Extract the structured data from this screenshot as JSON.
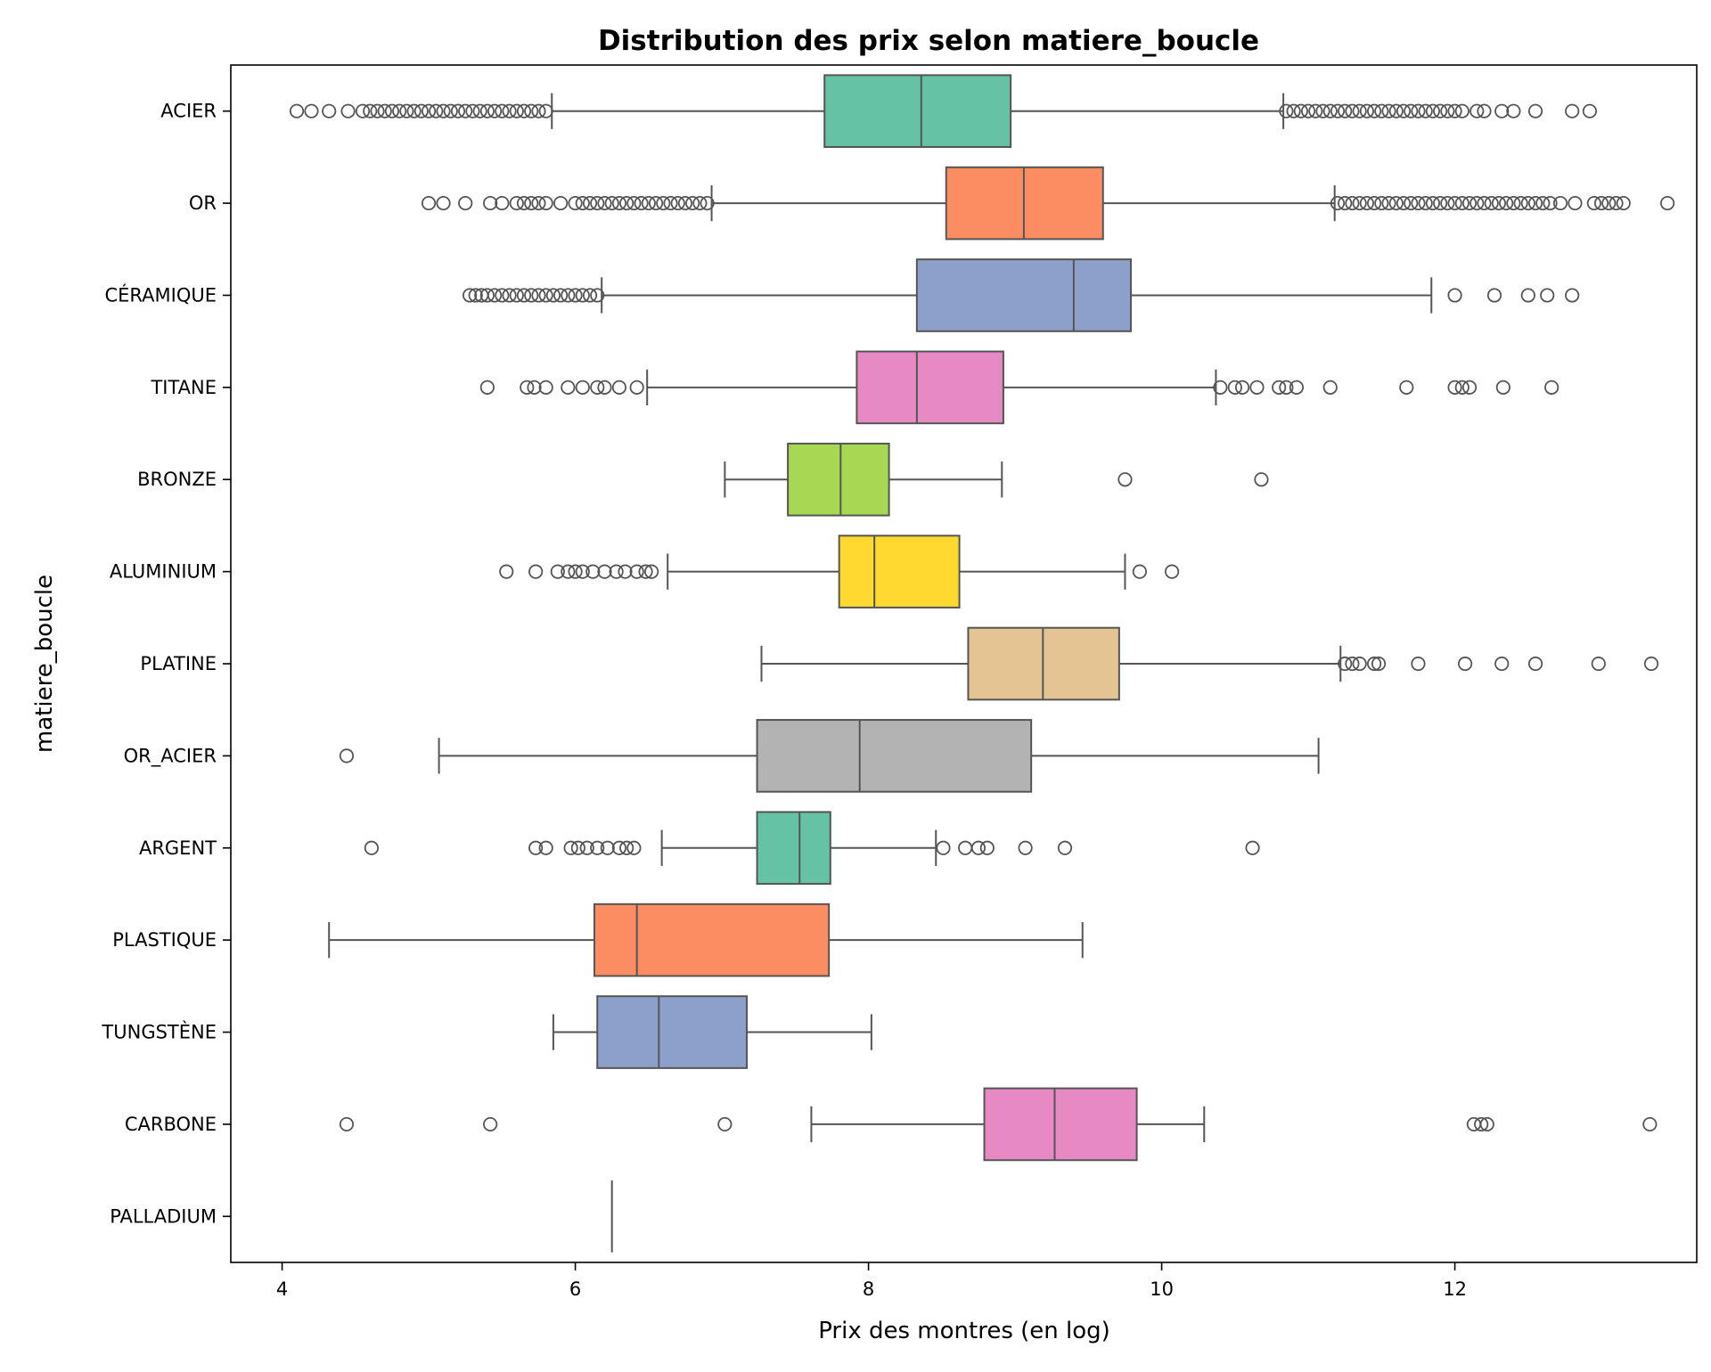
{
  "chart_data": {
    "type": "box",
    "title": "Distribution des prix selon matiere_boucle",
    "xlabel": "Prix des montres (en log)",
    "ylabel": "matiere_boucle",
    "xlim": [
      3.65,
      13.65
    ],
    "xticks": [
      4,
      6,
      8,
      10,
      12
    ],
    "orientation": "horizontal",
    "grid": false,
    "categories": [
      "ACIER",
      "OR",
      "CÉRAMIQUE",
      "TITANE",
      "BRONZE",
      "ALUMINIUM",
      "PLATINE",
      "OR_ACIER",
      "ARGENT",
      "PLASTIQUE",
      "TUNGSTÈNE",
      "CARBONE",
      "PALLADIUM"
    ],
    "boxes": [
      {
        "category": "ACIER",
        "whisker_low": 5.84,
        "q1": 7.7,
        "median": 8.36,
        "q3": 8.97,
        "whisker_high": 10.83,
        "color": "#66c2a5",
        "outliers": [
          4.1,
          4.2,
          4.32,
          4.45,
          4.55,
          4.6,
          4.65,
          4.7,
          4.75,
          4.8,
          4.85,
          4.9,
          4.95,
          5.0,
          5.05,
          5.1,
          5.15,
          5.2,
          5.25,
          5.3,
          5.35,
          5.4,
          5.45,
          5.5,
          5.55,
          5.6,
          5.65,
          5.7,
          5.75,
          5.8,
          10.85,
          10.9,
          10.95,
          11.0,
          11.05,
          11.1,
          11.15,
          11.2,
          11.25,
          11.3,
          11.35,
          11.4,
          11.45,
          11.5,
          11.55,
          11.6,
          11.65,
          11.7,
          11.75,
          11.8,
          11.85,
          11.9,
          11.95,
          12.0,
          12.05,
          12.15,
          12.2,
          12.32,
          12.4,
          12.55,
          12.8,
          12.92
        ]
      },
      {
        "category": "OR",
        "whisker_low": 6.93,
        "q1": 8.53,
        "median": 9.06,
        "q3": 9.6,
        "whisker_high": 11.18,
        "color": "#fc8d62",
        "outliers": [
          5.0,
          5.1,
          5.25,
          5.42,
          5.5,
          5.6,
          5.65,
          5.7,
          5.75,
          5.8,
          5.9,
          6.0,
          6.05,
          6.1,
          6.15,
          6.2,
          6.25,
          6.3,
          6.35,
          6.4,
          6.45,
          6.5,
          6.55,
          6.6,
          6.65,
          6.7,
          6.75,
          6.8,
          6.85,
          6.9,
          11.2,
          11.25,
          11.3,
          11.35,
          11.4,
          11.45,
          11.5,
          11.55,
          11.6,
          11.65,
          11.7,
          11.75,
          11.8,
          11.85,
          11.9,
          11.95,
          12.0,
          12.05,
          12.1,
          12.15,
          12.2,
          12.25,
          12.3,
          12.35,
          12.4,
          12.45,
          12.5,
          12.55,
          12.6,
          12.65,
          12.72,
          12.82,
          12.95,
          13.0,
          13.05,
          13.1,
          13.15,
          13.45
        ]
      },
      {
        "category": "CÉRAMIQUE",
        "whisker_low": 6.18,
        "q1": 8.33,
        "median": 9.4,
        "q3": 9.79,
        "whisker_high": 11.84,
        "color": "#8da0cb",
        "outliers": [
          5.28,
          5.32,
          5.36,
          5.4,
          5.45,
          5.5,
          5.55,
          5.6,
          5.65,
          5.7,
          5.75,
          5.8,
          5.85,
          5.9,
          5.95,
          6.0,
          6.05,
          6.1,
          6.15,
          12.0,
          12.27,
          12.5,
          12.63,
          12.8
        ]
      },
      {
        "category": "TITANE",
        "whisker_low": 6.49,
        "q1": 7.92,
        "median": 8.33,
        "q3": 8.92,
        "whisker_high": 10.37,
        "color": "#e78ac3",
        "outliers": [
          5.4,
          5.67,
          5.72,
          5.8,
          5.95,
          6.05,
          6.15,
          6.2,
          6.3,
          6.42,
          10.4,
          10.5,
          10.55,
          10.65,
          10.8,
          10.85,
          10.92,
          11.15,
          11.67,
          12.0,
          12.05,
          12.1,
          12.33,
          12.66
        ]
      },
      {
        "category": "BRONZE",
        "whisker_low": 7.02,
        "q1": 7.45,
        "median": 7.81,
        "q3": 8.14,
        "whisker_high": 8.91,
        "color": "#a6d854",
        "outliers": [
          9.75,
          10.68
        ]
      },
      {
        "category": "ALUMINIUM",
        "whisker_low": 6.63,
        "q1": 7.8,
        "median": 8.04,
        "q3": 8.62,
        "whisker_high": 9.75,
        "color": "#ffd92f",
        "outliers": [
          5.53,
          5.73,
          5.88,
          5.95,
          6.0,
          6.05,
          6.12,
          6.2,
          6.28,
          6.34,
          6.42,
          6.48,
          6.52,
          9.85,
          10.07
        ]
      },
      {
        "category": "PLATINE",
        "whisker_low": 7.27,
        "q1": 8.68,
        "median": 9.19,
        "q3": 9.71,
        "whisker_high": 11.22,
        "color": "#e5c494",
        "outliers": [
          11.25,
          11.3,
          11.35,
          11.45,
          11.48,
          11.75,
          12.07,
          12.32,
          12.55,
          12.98,
          13.34
        ]
      },
      {
        "category": "OR_ACIER",
        "whisker_low": 5.07,
        "q1": 7.24,
        "median": 7.94,
        "q3": 9.11,
        "whisker_high": 11.07,
        "color": "#b3b3b3",
        "outliers": [
          4.44
        ]
      },
      {
        "category": "ARGENT",
        "whisker_low": 6.59,
        "q1": 7.24,
        "median": 7.53,
        "q3": 7.74,
        "whisker_high": 8.46,
        "color": "#66c2a5",
        "outliers": [
          4.61,
          5.73,
          5.8,
          5.97,
          6.02,
          6.08,
          6.15,
          6.22,
          6.3,
          6.35,
          6.4,
          8.51,
          8.66,
          8.75,
          8.81,
          9.07,
          9.34,
          10.62
        ]
      },
      {
        "category": "PLASTIQUE",
        "whisker_low": 4.32,
        "q1": 6.13,
        "median": 6.42,
        "q3": 7.73,
        "whisker_high": 9.46,
        "color": "#fc8d62",
        "outliers": []
      },
      {
        "category": "TUNGSTÈNE",
        "whisker_low": 5.85,
        "q1": 6.15,
        "median": 6.57,
        "q3": 7.17,
        "whisker_high": 8.02,
        "color": "#8da0cb",
        "outliers": []
      },
      {
        "category": "CARBONE",
        "whisker_low": 7.61,
        "q1": 8.79,
        "median": 9.27,
        "q3": 9.83,
        "whisker_high": 10.29,
        "color": "#e78ac3",
        "outliers": [
          4.44,
          5.42,
          7.02,
          12.13,
          12.18,
          12.22,
          13.33
        ]
      },
      {
        "category": "PALLADIUM",
        "whisker_low": 6.25,
        "q1": 6.25,
        "median": 6.25,
        "q3": 6.25,
        "whisker_high": 6.25,
        "color": "#a6d854",
        "outliers": []
      }
    ]
  }
}
